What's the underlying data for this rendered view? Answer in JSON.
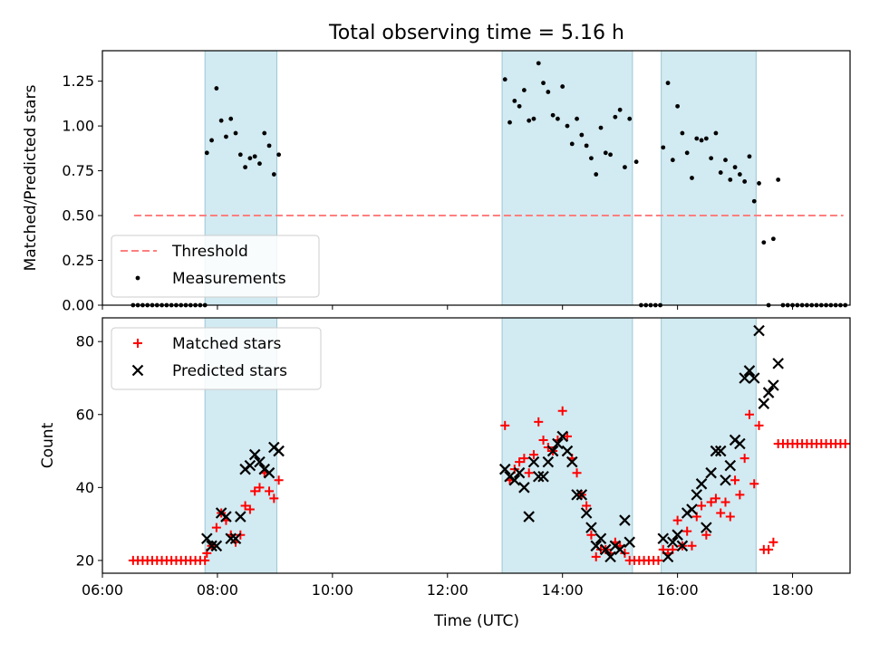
{
  "chart_data": [
    {
      "type": "scatter",
      "title": "Total observing time = 5.16 h",
      "ylabel": "Matched/Predicted stars",
      "xlim": [
        "06:00",
        "19:00"
      ],
      "ylim": [
        0,
        1.42
      ],
      "xticks": [
        "06:00",
        "08:00",
        "10:00",
        "12:00",
        "14:00",
        "16:00",
        "18:00"
      ],
      "yticks": [
        "0.00",
        "0.25",
        "0.50",
        "0.75",
        "1.00",
        "1.25"
      ],
      "shaded_intervals": [
        [
          "07:47",
          "09:02"
        ],
        [
          "12:57",
          "15:13"
        ],
        [
          "15:43",
          "17:22"
        ]
      ],
      "shade_color": "#add8e6",
      "legend": {
        "position": "lower-left",
        "entries": [
          "Threshold",
          "Measurements"
        ]
      },
      "series": [
        {
          "name": "Threshold",
          "kind": "line",
          "color": "#ff7f7f",
          "style": "dashed",
          "x": [
            "06:33",
            "18:53"
          ],
          "y": [
            0.5,
            0.5
          ]
        },
        {
          "name": "Measurements",
          "kind": "points",
          "color": "#000000",
          "x": [
            "06:32",
            "06:37",
            "06:42",
            "06:47",
            "06:52",
            "06:57",
            "07:02",
            "07:07",
            "07:12",
            "07:17",
            "07:22",
            "07:27",
            "07:32",
            "07:37",
            "07:42",
            "07:47",
            "07:49",
            "07:54",
            "07:59",
            "08:04",
            "08:09",
            "08:14",
            "08:19",
            "08:24",
            "08:29",
            "08:34",
            "08:39",
            "08:44",
            "08:49",
            "08:54",
            "08:59",
            "09:04",
            "13:00",
            "13:05",
            "13:10",
            "13:15",
            "13:20",
            "13:25",
            "13:30",
            "13:35",
            "13:40",
            "13:45",
            "13:50",
            "13:55",
            "14:00",
            "14:05",
            "14:10",
            "14:15",
            "14:20",
            "14:25",
            "14:30",
            "14:35",
            "14:40",
            "14:45",
            "14:50",
            "14:55",
            "15:00",
            "15:05",
            "15:10",
            "15:17",
            "15:22",
            "15:27",
            "15:32",
            "15:37",
            "15:42",
            "15:45",
            "15:50",
            "15:55",
            "16:00",
            "16:05",
            "16:10",
            "16:15",
            "16:20",
            "16:25",
            "16:30",
            "16:35",
            "16:40",
            "16:45",
            "16:50",
            "16:55",
            "17:00",
            "17:05",
            "17:10",
            "17:15",
            "17:20",
            "17:25",
            "17:30",
            "17:35",
            "17:40",
            "17:45",
            "17:50",
            "17:55",
            "18:00",
            "18:05",
            "18:10",
            "18:15",
            "18:20",
            "18:25",
            "18:30",
            "18:35",
            "18:40",
            "18:45",
            "18:50",
            "18:55"
          ],
          "y": [
            0,
            0,
            0,
            0,
            0,
            0,
            0,
            0,
            0,
            0,
            0,
            0,
            0,
            0,
            0,
            0,
            0.85,
            0.92,
            1.21,
            1.03,
            0.94,
            1.04,
            0.96,
            0.84,
            0.77,
            0.82,
            0.83,
            0.79,
            0.96,
            0.89,
            0.73,
            0.84,
            1.26,
            1.02,
            1.14,
            1.11,
            1.2,
            1.03,
            1.04,
            1.35,
            1.24,
            1.19,
            1.06,
            1.04,
            1.22,
            1.0,
            0.9,
            1.04,
            0.95,
            0.89,
            0.82,
            0.73,
            0.99,
            0.85,
            0.84,
            1.05,
            1.09,
            0.77,
            1.04,
            0.8,
            0,
            0,
            0,
            0,
            0,
            0.88,
            1.24,
            0.81,
            1.11,
            0.96,
            0.85,
            0.71,
            0.93,
            0.92,
            0.93,
            0.82,
            0.96,
            0.74,
            0.81,
            0.7,
            0.77,
            0.73,
            0.69,
            0.83,
            0.58,
            0.68,
            0.35,
            0,
            0.37,
            0.7,
            0,
            0,
            0,
            0,
            0,
            0,
            0,
            0,
            0,
            0,
            0,
            0,
            0,
            0
          ]
        }
      ]
    },
    {
      "type": "scatter",
      "xlabel": "Time (UTC)",
      "ylabel": "Count",
      "xlim": [
        "06:00",
        "19:00"
      ],
      "ylim": [
        16.5,
        86.5
      ],
      "xticks": [
        "06:00",
        "08:00",
        "10:00",
        "12:00",
        "14:00",
        "16:00",
        "18:00"
      ],
      "yticks": [
        "20",
        "40",
        "60",
        "80"
      ],
      "shaded_intervals": [
        [
          "07:47",
          "09:02"
        ],
        [
          "12:57",
          "15:13"
        ],
        [
          "15:43",
          "17:22"
        ]
      ],
      "shade_color": "#add8e6",
      "legend": {
        "position": "upper-left",
        "entries": [
          "Matched stars",
          "Predicted stars"
        ]
      },
      "series": [
        {
          "name": "Matched stars",
          "marker": "+",
          "color": "#ff0000",
          "x": [
            "06:32",
            "06:37",
            "06:42",
            "06:47",
            "06:52",
            "06:57",
            "07:02",
            "07:07",
            "07:12",
            "07:17",
            "07:22",
            "07:27",
            "07:32",
            "07:37",
            "07:42",
            "07:47",
            "07:49",
            "07:54",
            "07:59",
            "08:04",
            "08:09",
            "08:14",
            "08:19",
            "08:24",
            "08:29",
            "08:34",
            "08:39",
            "08:44",
            "08:49",
            "08:54",
            "08:59",
            "09:04",
            "13:00",
            "13:05",
            "13:10",
            "13:15",
            "13:20",
            "13:25",
            "13:30",
            "13:35",
            "13:40",
            "13:45",
            "13:50",
            "13:55",
            "14:00",
            "14:05",
            "14:10",
            "14:15",
            "14:20",
            "14:25",
            "14:30",
            "14:35",
            "14:40",
            "14:45",
            "14:50",
            "14:55",
            "15:00",
            "15:05",
            "15:10",
            "15:15",
            "15:20",
            "15:25",
            "15:30",
            "15:35",
            "15:40",
            "15:45",
            "15:50",
            "15:55",
            "16:00",
            "16:05",
            "16:10",
            "16:15",
            "16:20",
            "16:25",
            "16:30",
            "16:35",
            "16:40",
            "16:45",
            "16:50",
            "16:55",
            "17:00",
            "17:05",
            "17:10",
            "17:15",
            "17:20",
            "17:25",
            "17:30",
            "17:35",
            "17:40",
            "17:45",
            "17:50",
            "17:55",
            "18:00",
            "18:05",
            "18:10",
            "18:15",
            "18:20",
            "18:25",
            "18:30",
            "18:35",
            "18:40",
            "18:45",
            "18:50",
            "18:55"
          ],
          "y": [
            20,
            20,
            20,
            20,
            20,
            20,
            20,
            20,
            20,
            20,
            20,
            20,
            20,
            20,
            20,
            20,
            22,
            24,
            29,
            33,
            31,
            27,
            25,
            27,
            35,
            34,
            39,
            40,
            44,
            39,
            37,
            42,
            57,
            42,
            45,
            47,
            48,
            44,
            49,
            58,
            53,
            51,
            50,
            53,
            61,
            54,
            48,
            44,
            38,
            35,
            27,
            21,
            23,
            23,
            22,
            25,
            24,
            22,
            20,
            20,
            20,
            20,
            20,
            20,
            20,
            23,
            22,
            23,
            31,
            24,
            28,
            24,
            32,
            35,
            27,
            36,
            37,
            33,
            36,
            32,
            42,
            38,
            48,
            60,
            41,
            57,
            23,
            23,
            25,
            52,
            52,
            52,
            52,
            52,
            52,
            52,
            52,
            52,
            52,
            52,
            52,
            52,
            52,
            52
          ]
        },
        {
          "name": "Predicted stars",
          "marker": "x",
          "color": "#000000",
          "x": [
            "07:49",
            "07:54",
            "07:59",
            "08:04",
            "08:09",
            "08:14",
            "08:19",
            "08:24",
            "08:29",
            "08:34",
            "08:39",
            "08:44",
            "08:49",
            "08:54",
            "08:59",
            "09:04",
            "13:00",
            "13:05",
            "13:10",
            "13:15",
            "13:20",
            "13:25",
            "13:30",
            "13:35",
            "13:40",
            "13:45",
            "13:50",
            "13:55",
            "14:00",
            "14:05",
            "14:10",
            "14:15",
            "14:20",
            "14:25",
            "14:30",
            "14:35",
            "14:40",
            "14:45",
            "14:50",
            "14:55",
            "15:00",
            "15:05",
            "15:10",
            "15:45",
            "15:50",
            "15:55",
            "16:00",
            "16:05",
            "16:10",
            "16:15",
            "16:20",
            "16:25",
            "16:30",
            "16:35",
            "16:40",
            "16:45",
            "16:50",
            "16:55",
            "17:00",
            "17:05",
            "17:10",
            "17:15",
            "17:20",
            "17:25",
            "17:30",
            "17:35",
            "17:40",
            "17:45"
          ],
          "y": [
            26,
            24,
            24,
            33,
            32,
            26,
            26,
            32,
            45,
            46,
            49,
            47,
            45,
            44,
            51,
            50,
            45,
            43,
            42,
            44,
            40,
            32,
            47,
            43,
            43,
            47,
            50,
            52,
            54,
            50,
            47,
            38,
            38,
            33,
            29,
            24,
            26,
            23,
            21,
            24,
            23,
            31,
            25,
            26,
            21,
            25,
            27,
            24,
            33,
            34,
            38,
            41,
            29,
            44,
            50,
            50,
            42,
            46,
            53,
            52,
            70,
            72,
            70,
            83,
            63,
            66,
            68,
            74
          ]
        }
      ]
    }
  ]
}
